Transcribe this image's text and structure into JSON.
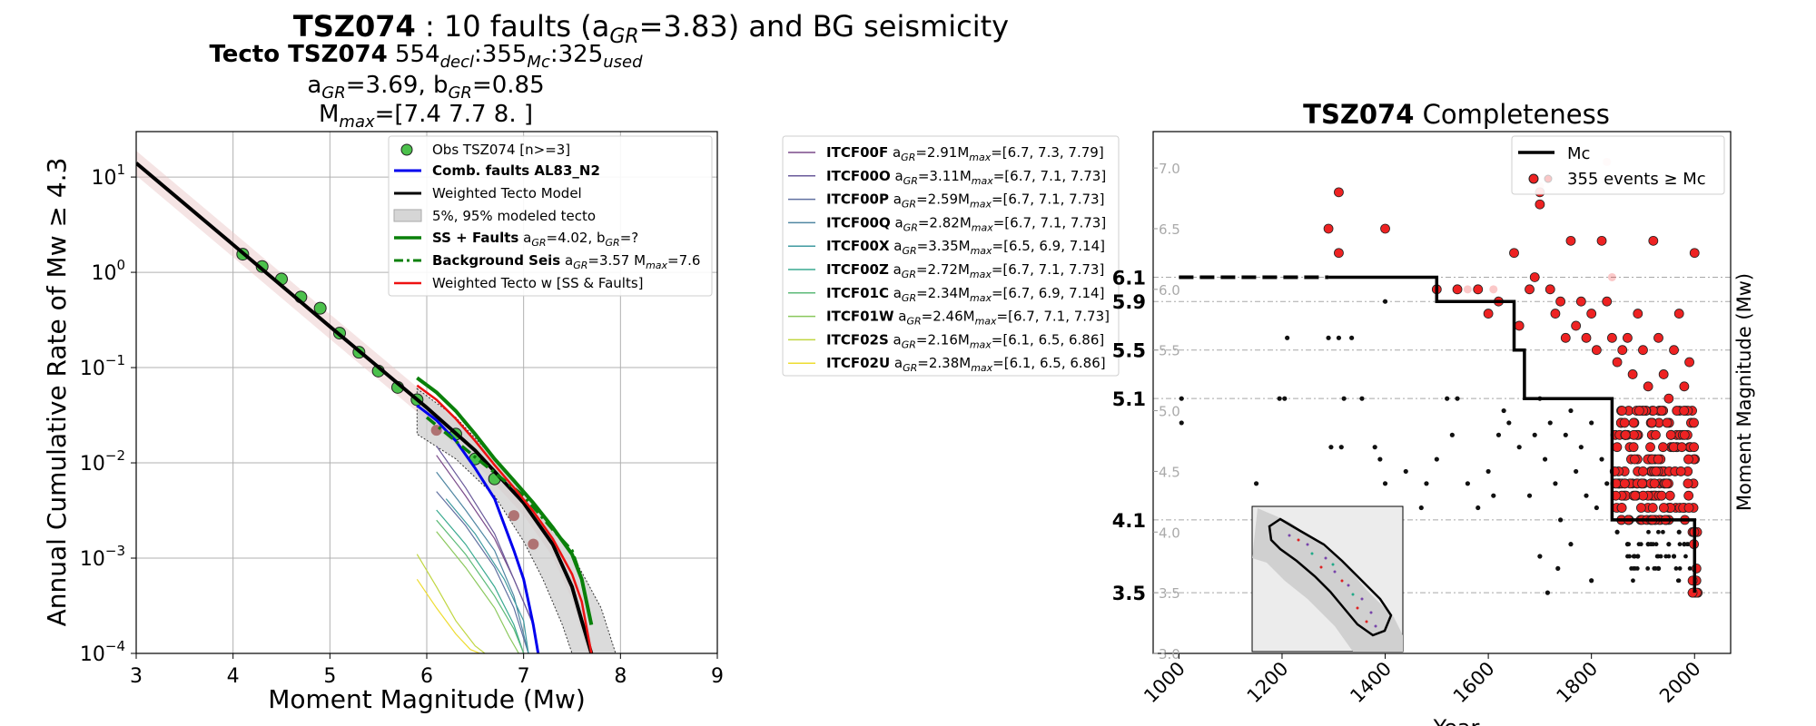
{
  "figure": {
    "suptitle_bold": "TSZ074",
    "suptitle_rest": " : 10 faults (a",
    "suptitle_sub": "GR",
    "suptitle_tail": "=3.83) and BG seismicity"
  },
  "left_title": {
    "line1_bold": "Tecto TSZ074",
    "line1_n1": "554",
    "line1_s1": "decl",
    "line1_n2": ":355",
    "line1_s2": "Mc",
    "line1_n3": ":325",
    "line1_s3": "used",
    "line2_a": "a",
    "line2_a_sub": "GR",
    "line2_a_val": "=3.69,  b",
    "line2_b_sub": "GR",
    "line2_b_val": "=0.85",
    "line3_m": "M",
    "line3_sub": "max",
    "line3_val": "=[7.4 7.7 8. ]"
  },
  "right_title": {
    "bold": "TSZ074",
    "rest": " Completeness"
  },
  "fault_legend": [
    {
      "name": "ITCF00F",
      "a": "2.91",
      "mmax": "=[6.7, 7.3, 7.79]",
      "color": "#7a4a8a"
    },
    {
      "name": "ITCF00O",
      "a": "3.11",
      "mmax": "=[6.7, 7.1, 7.73]",
      "color": "#6a5a9a"
    },
    {
      "name": "ITCF00P",
      "a": "2.59",
      "mmax": "=[6.7, 7.1, 7.73]",
      "color": "#6070a0"
    },
    {
      "name": "ITCF00Q",
      "a": "2.82",
      "mmax": "=[6.7, 7.1, 7.73]",
      "color": "#4f86a2"
    },
    {
      "name": "ITCF00X",
      "a": "3.35",
      "mmax": "=[6.5, 6.9, 7.14]",
      "color": "#3f9aa0"
    },
    {
      "name": "ITCF00Z",
      "a": "2.72",
      "mmax": "=[6.7, 7.1, 7.73]",
      "color": "#3aaa90"
    },
    {
      "name": "ITCF01C",
      "a": "2.34",
      "mmax": "=[6.7, 6.9, 7.14]",
      "color": "#5cba78"
    },
    {
      "name": "ITCF01W",
      "a": "2.46",
      "mmax": "=[6.7, 7.1, 7.73]",
      "color": "#8ac85c"
    },
    {
      "name": "ITCF02S",
      "a": "2.16",
      "mmax": "=[6.1, 6.5, 6.86]",
      "color": "#c0d640"
    },
    {
      "name": "ITCF02U",
      "a": "2.38",
      "mmax": "=[6.1, 6.5, 6.86]",
      "color": "#eedc30"
    }
  ],
  "fault_legend_labels": {
    "a_prefix": " a",
    "a_sub": "GR",
    "m_prefix": "M",
    "m_sub": "max"
  },
  "chart_data": [
    {
      "type": "line",
      "xlabel": "Moment Magnitude (Mw)",
      "ylabel": "Annual Cumulative Rate of Mw  ≥  4.3",
      "xlim": [
        3,
        9
      ],
      "ylim": [
        0.0001,
        30
      ],
      "yscale": "log",
      "grid": true,
      "legend_placement": "top-right",
      "xticks": [
        "3",
        "4",
        "5",
        "6",
        "7",
        "8",
        "9"
      ],
      "yticks": [
        {
          "base": "10",
          "exp": "1",
          "v": 10
        },
        {
          "base": "10",
          "exp": "0",
          "v": 1
        },
        {
          "base": "10",
          "exp": "−1",
          "v": 0.1
        },
        {
          "base": "10",
          "exp": "−2",
          "v": 0.01
        },
        {
          "base": "10",
          "exp": "−3",
          "v": 0.001
        },
        {
          "base": "10",
          "exp": "−4",
          "v": 0.0001
        }
      ],
      "legend": [
        {
          "key": "obs",
          "label": "Obs TSZ074 [n>=3]"
        },
        {
          "key": "comb",
          "label": "Comb. faults AL83_N2"
        },
        {
          "key": "wtm",
          "label": "Weighted Tecto Model"
        },
        {
          "key": "band",
          "label": "5%, 95% modeled tecto"
        },
        {
          "key": "ss",
          "label": "SS + Faults",
          "tail_a": " a",
          "tail_sub": "GR",
          "tail_val": "=4.02,  b",
          "tail_sub2": "GR",
          "tail_val2": "=?"
        },
        {
          "key": "bg",
          "label": "Background Seis",
          "tail_a": " a",
          "tail_sub": "GR",
          "tail_val": "=3.57 M",
          "tail_sub2": "max",
          "tail_val2": "=7.6"
        },
        {
          "key": "wtsf",
          "label": "Weighted Tecto w [SS & Faults]"
        }
      ],
      "series": [
        {
          "name": "Obs TSZ074 [n>=3]",
          "kind": "points",
          "x": [
            4.1,
            4.3,
            4.5,
            4.7,
            4.9,
            5.1,
            5.3,
            5.5,
            5.7,
            5.9,
            6.3,
            6.5,
            6.7
          ],
          "y": [
            1.55,
            1.15,
            0.85,
            0.55,
            0.42,
            0.23,
            0.145,
            0.092,
            0.062,
            0.046,
            0.02,
            0.011,
            0.0068
          ]
        },
        {
          "name": "removed",
          "kind": "points",
          "x": [
            6.1,
            6.9,
            7.1
          ],
          "y": [
            0.022,
            0.0028,
            0.0014
          ]
        },
        {
          "name": "Weighted Tecto Model",
          "x": [
            3,
            4,
            5,
            6,
            6.5,
            7,
            7.3,
            7.5,
            7.6,
            7.7
          ],
          "y": [
            14,
            1.95,
            0.27,
            0.038,
            0.0135,
            0.0038,
            0.0014,
            0.0005,
            0.00022,
            0.0001
          ]
        },
        {
          "name": "Comb. faults AL83_N2",
          "x": [
            5.9,
            6.1,
            6.3,
            6.5,
            6.7,
            6.9,
            7.0,
            7.05,
            7.1,
            7.15
          ],
          "y": [
            0.04,
            0.028,
            0.017,
            0.0088,
            0.0042,
            0.0012,
            0.0006,
            0.00035,
            0.0002,
            0.0001
          ]
        },
        {
          "name": "SS + Faults",
          "x": [
            5.9,
            6.1,
            6.3,
            6.5,
            6.7,
            6.9,
            7.1,
            7.3,
            7.5,
            7.6,
            7.7
          ],
          "y": [
            0.078,
            0.055,
            0.035,
            0.02,
            0.011,
            0.0065,
            0.0038,
            0.0021,
            0.0011,
            0.0006,
            0.0002
          ]
        },
        {
          "name": "Background Seis",
          "x": [
            6.0,
            6.5,
            7.0,
            7.3,
            7.5,
            7.6,
            7.7
          ],
          "y": [
            0.03,
            0.0115,
            0.0045,
            0.002,
            0.0012,
            0.0006,
            0.0002
          ]
        },
        {
          "name": "Weighted Tecto w [SS & Faults]",
          "x": [
            5.9,
            6.1,
            6.3,
            6.5,
            6.7,
            6.9,
            7.1,
            7.3,
            7.5,
            7.6,
            7.7
          ],
          "y": [
            0.065,
            0.046,
            0.029,
            0.017,
            0.0095,
            0.0055,
            0.0031,
            0.0016,
            0.00068,
            0.00035,
            0.0001
          ]
        }
      ],
      "band_upper": {
        "x": [
          5.9,
          6.3,
          6.7,
          7.1,
          7.5,
          7.8,
          7.95
        ],
        "y": [
          0.06,
          0.03,
          0.011,
          0.0038,
          0.0011,
          0.0003,
          0.0001
        ]
      },
      "band_lower": {
        "x": [
          5.9,
          6.3,
          6.7,
          7.0,
          7.2,
          7.4,
          7.5
        ],
        "y": [
          0.02,
          0.011,
          0.0045,
          0.0015,
          0.0006,
          0.0002,
          0.0001
        ]
      },
      "fault_curves": [
        {
          "x": [
            6.1,
            6.4,
            6.7,
            6.9,
            7.1
          ],
          "y": [
            0.012,
            0.0045,
            0.0016,
            0.0006,
            0.0002
          ]
        },
        {
          "x": [
            6.1,
            6.4,
            6.7,
            6.9,
            7.1
          ],
          "y": [
            0.015,
            0.0055,
            0.0018,
            0.0006,
            0.0002
          ]
        },
        {
          "x": [
            6.1,
            6.4,
            6.7,
            6.9,
            7.05
          ],
          "y": [
            0.005,
            0.0022,
            0.0008,
            0.0003,
            0.0001
          ]
        },
        {
          "x": [
            6.1,
            6.4,
            6.7,
            6.9,
            7.05
          ],
          "y": [
            0.008,
            0.0032,
            0.0012,
            0.0004,
            0.0001
          ]
        },
        {
          "x": [
            6.2,
            6.5,
            6.8,
            7.0,
            7.05
          ],
          "y": [
            0.0042,
            0.0018,
            0.0006,
            0.00022,
            0.0001
          ]
        },
        {
          "x": [
            6.1,
            6.4,
            6.7,
            6.9,
            7.0
          ],
          "y": [
            0.0032,
            0.0014,
            0.0005,
            0.0002,
            0.0001
          ]
        },
        {
          "x": [
            6.1,
            6.4,
            6.7,
            6.9,
            7.0
          ],
          "y": [
            0.0025,
            0.0011,
            0.0004,
            0.00018,
            0.0001
          ]
        },
        {
          "x": [
            6.1,
            6.4,
            6.7,
            6.85,
            6.95
          ],
          "y": [
            0.0019,
            0.0008,
            0.0003,
            0.00015,
            0.0001
          ]
        },
        {
          "x": [
            5.9,
            6.1,
            6.3,
            6.5,
            6.6
          ],
          "y": [
            0.0011,
            0.0005,
            0.00022,
            0.00012,
            0.0001
          ]
        },
        {
          "x": [
            5.9,
            6.1,
            6.3,
            6.45,
            6.55
          ],
          "y": [
            0.0006,
            0.0003,
            0.00016,
            0.00011,
            0.0001
          ]
        }
      ]
    },
    {
      "type": "scatter",
      "xlabel": "Year",
      "ylabel": "Moment Magnitude (Mw)",
      "xlim": [
        950,
        2070
      ],
      "ylim": [
        3.0,
        7.3
      ],
      "xticks": [
        "1000",
        "1200",
        "1400",
        "1600",
        "1800",
        "2000"
      ],
      "yticks": [
        "3.0",
        "3.5",
        "4.0",
        "4.5",
        "5.0",
        "5.5",
        "6.0",
        "6.5",
        "7.0"
      ],
      "mc_levels": [
        "3.5",
        "4.1",
        "5.1",
        "5.5",
        "5.9",
        "6.1"
      ],
      "legend": [
        {
          "label": "Mc"
        },
        {
          "label": "355 events  ≥  Mc"
        }
      ],
      "mc_step": {
        "x": [
          1000,
          1290,
          1500,
          1500,
          1650,
          1650,
          1670,
          1670,
          1840,
          1840,
          2000,
          2000
        ],
        "y": [
          6.1,
          6.1,
          6.1,
          5.9,
          5.9,
          5.5,
          5.5,
          5.1,
          5.1,
          4.1,
          4.1,
          3.5
        ]
      },
      "events_below": [
        [
          1005,
          5.1
        ],
        [
          1005,
          4.9
        ],
        [
          1150,
          4.4
        ],
        [
          1195,
          5.1
        ],
        [
          1205,
          5.1
        ],
        [
          1210,
          5.6
        ],
        [
          1290,
          5.6
        ],
        [
          1310,
          5.6
        ],
        [
          1335,
          5.6
        ],
        [
          1400,
          5.9
        ],
        [
          1320,
          5.1
        ],
        [
          1355,
          5.1
        ],
        [
          1295,
          4.7
        ],
        [
          1315,
          4.7
        ],
        [
          1380,
          4.7
        ],
        [
          1390,
          4.6
        ],
        [
          1400,
          4.4
        ],
        [
          1440,
          4.5
        ],
        [
          1470,
          4.2
        ],
        [
          1480,
          4.4
        ],
        [
          1500,
          4.6
        ],
        [
          1520,
          5.1
        ],
        [
          1540,
          5.1
        ],
        [
          1530,
          4.8
        ],
        [
          1560,
          4.4
        ],
        [
          1580,
          4.2
        ],
        [
          1600,
          4.5
        ],
        [
          1620,
          4.8
        ],
        [
          1630,
          5.0
        ],
        [
          1610,
          4.3
        ],
        [
          1640,
          4.9
        ],
        [
          1660,
          4.7
        ],
        [
          1680,
          4.3
        ],
        [
          1690,
          4.8
        ],
        [
          1700,
          5.1
        ],
        [
          1710,
          4.6
        ],
        [
          1720,
          4.9
        ],
        [
          1730,
          4.4
        ],
        [
          1740,
          4.1
        ],
        [
          1750,
          4.8
        ],
        [
          1760,
          5.0
        ],
        [
          1770,
          4.5
        ],
        [
          1780,
          4.7
        ],
        [
          1790,
          4.3
        ],
        [
          1800,
          4.9
        ],
        [
          1810,
          4.2
        ],
        [
          1820,
          4.6
        ],
        [
          1830,
          4.4
        ],
        [
          1700,
          3.8
        ],
        [
          1760,
          3.9
        ],
        [
          1800,
          3.6
        ],
        [
          1850,
          4.0
        ],
        [
          1870,
          3.9
        ],
        [
          1890,
          3.8
        ],
        [
          1910,
          3.9
        ],
        [
          1930,
          3.7
        ],
        [
          1950,
          3.9
        ],
        [
          1960,
          3.8
        ],
        [
          1970,
          4.0
        ],
        [
          1980,
          3.9
        ],
        [
          1715,
          3.5
        ],
        [
          1735,
          3.7
        ]
      ],
      "events_above": [
        [
          1290,
          6.5
        ],
        [
          1310,
          6.3
        ],
        [
          1310,
          6.8
        ],
        [
          1400,
          6.5
        ],
        [
          1500,
          6.0
        ],
        [
          1540,
          6.0
        ],
        [
          1580,
          6.0
        ],
        [
          1600,
          5.8
        ],
        [
          1620,
          5.9
        ],
        [
          1650,
          6.3
        ],
        [
          1660,
          5.7
        ],
        [
          1680,
          6.0
        ],
        [
          1690,
          6.1
        ],
        [
          1700,
          6.8
        ],
        [
          1700,
          6.7
        ],
        [
          1720,
          6.0
        ],
        [
          1730,
          5.8
        ],
        [
          1740,
          5.9
        ],
        [
          1750,
          5.6
        ],
        [
          1760,
          6.4
        ],
        [
          1770,
          5.7
        ],
        [
          1780,
          5.9
        ],
        [
          1790,
          5.6
        ],
        [
          1800,
          5.8
        ],
        [
          1810,
          5.5
        ],
        [
          1820,
          6.4
        ],
        [
          1830,
          5.9
        ],
        [
          1840,
          5.6
        ],
        [
          1850,
          5.4
        ],
        [
          1860,
          5.5
        ],
        [
          1870,
          5.6
        ],
        [
          1880,
          5.3
        ],
        [
          1890,
          5.8
        ],
        [
          1900,
          5.5
        ],
        [
          1910,
          5.2
        ],
        [
          1920,
          6.4
        ],
        [
          1930,
          5.6
        ],
        [
          1940,
          5.3
        ],
        [
          1950,
          5.1
        ],
        [
          1960,
          5.5
        ],
        [
          1970,
          5.8
        ],
        [
          1980,
          5.2
        ],
        [
          1990,
          5.4
        ],
        [
          2000,
          6.3
        ]
      ]
    }
  ]
}
